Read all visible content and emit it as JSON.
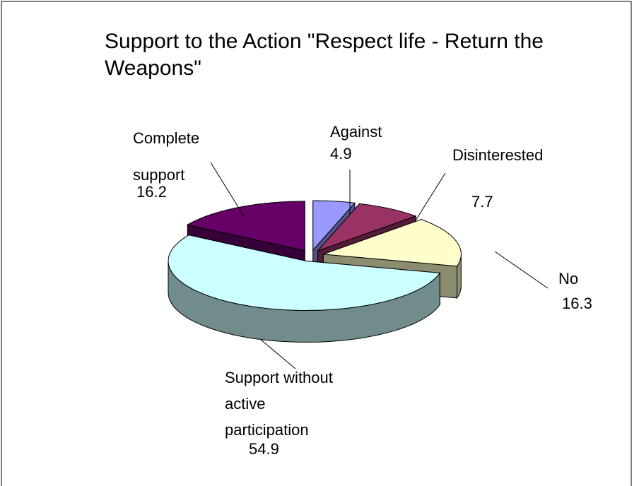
{
  "chart_data": {
    "type": "pie3d",
    "title": "Support to the Action \"Respect life - Return the Weapons\"",
    "categories": [
      "Against",
      "Disinterested",
      "No",
      "Support without active participation",
      "Complete support"
    ],
    "values": [
      4.9,
      7.7,
      16.3,
      54.9,
      16.2
    ],
    "colors": [
      "#9999ff",
      "#993366",
      "#ffffcc",
      "#ccffff",
      "#660066"
    ]
  }
}
